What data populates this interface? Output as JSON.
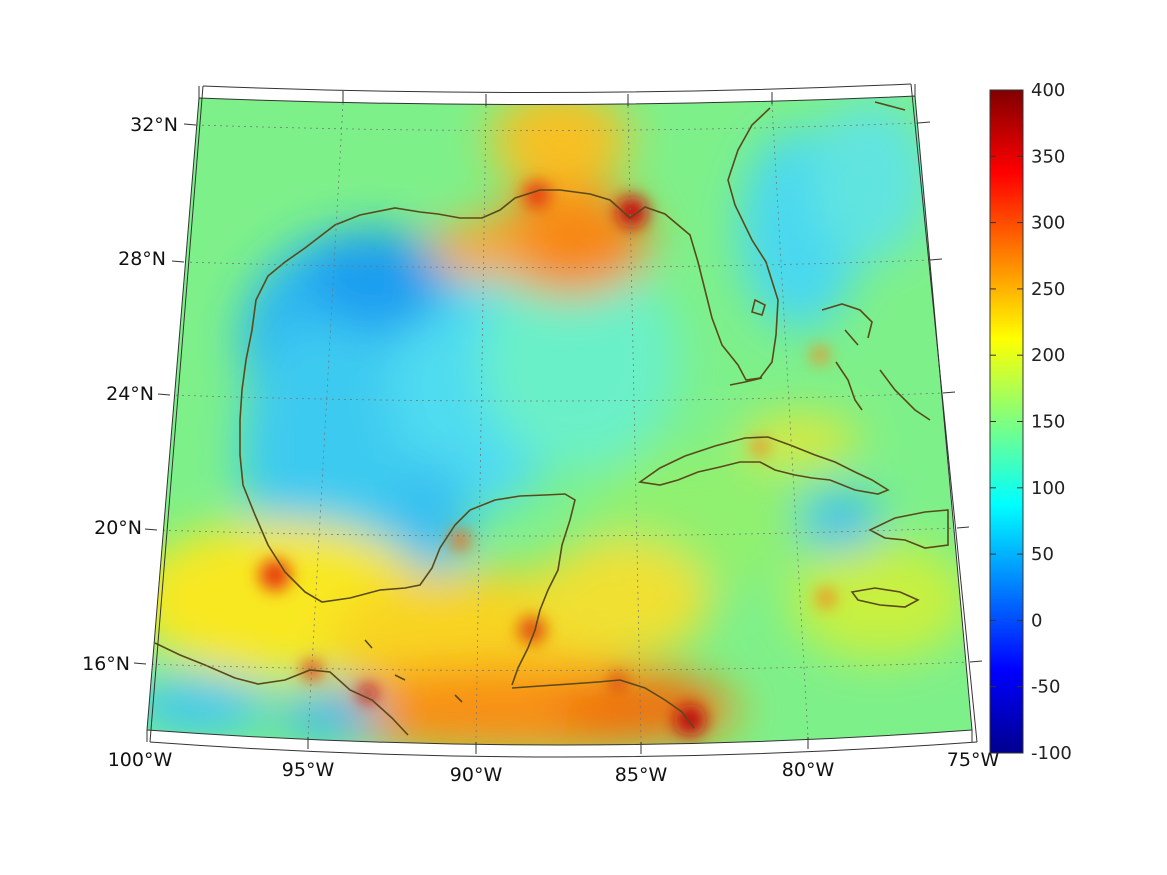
{
  "map": {
    "lat_labels": [
      "32°N",
      "28°N",
      "24°N",
      "20°N",
      "16°N"
    ],
    "lon_labels": [
      "100°W",
      "95°W",
      "90°W",
      "85°W",
      "80°W",
      "75°W"
    ],
    "extent": {
      "lon_min": -100,
      "lon_max": -75,
      "lat_min": 14,
      "lat_max": 33
    },
    "coast_color": "#5a4a1a"
  },
  "colorbar": {
    "ticks": [
      "400",
      "350",
      "300",
      "250",
      "200",
      "150",
      "100",
      "50",
      "0",
      "-50",
      "-100"
    ],
    "min": -100,
    "max": 400,
    "colormap": "jet"
  }
}
